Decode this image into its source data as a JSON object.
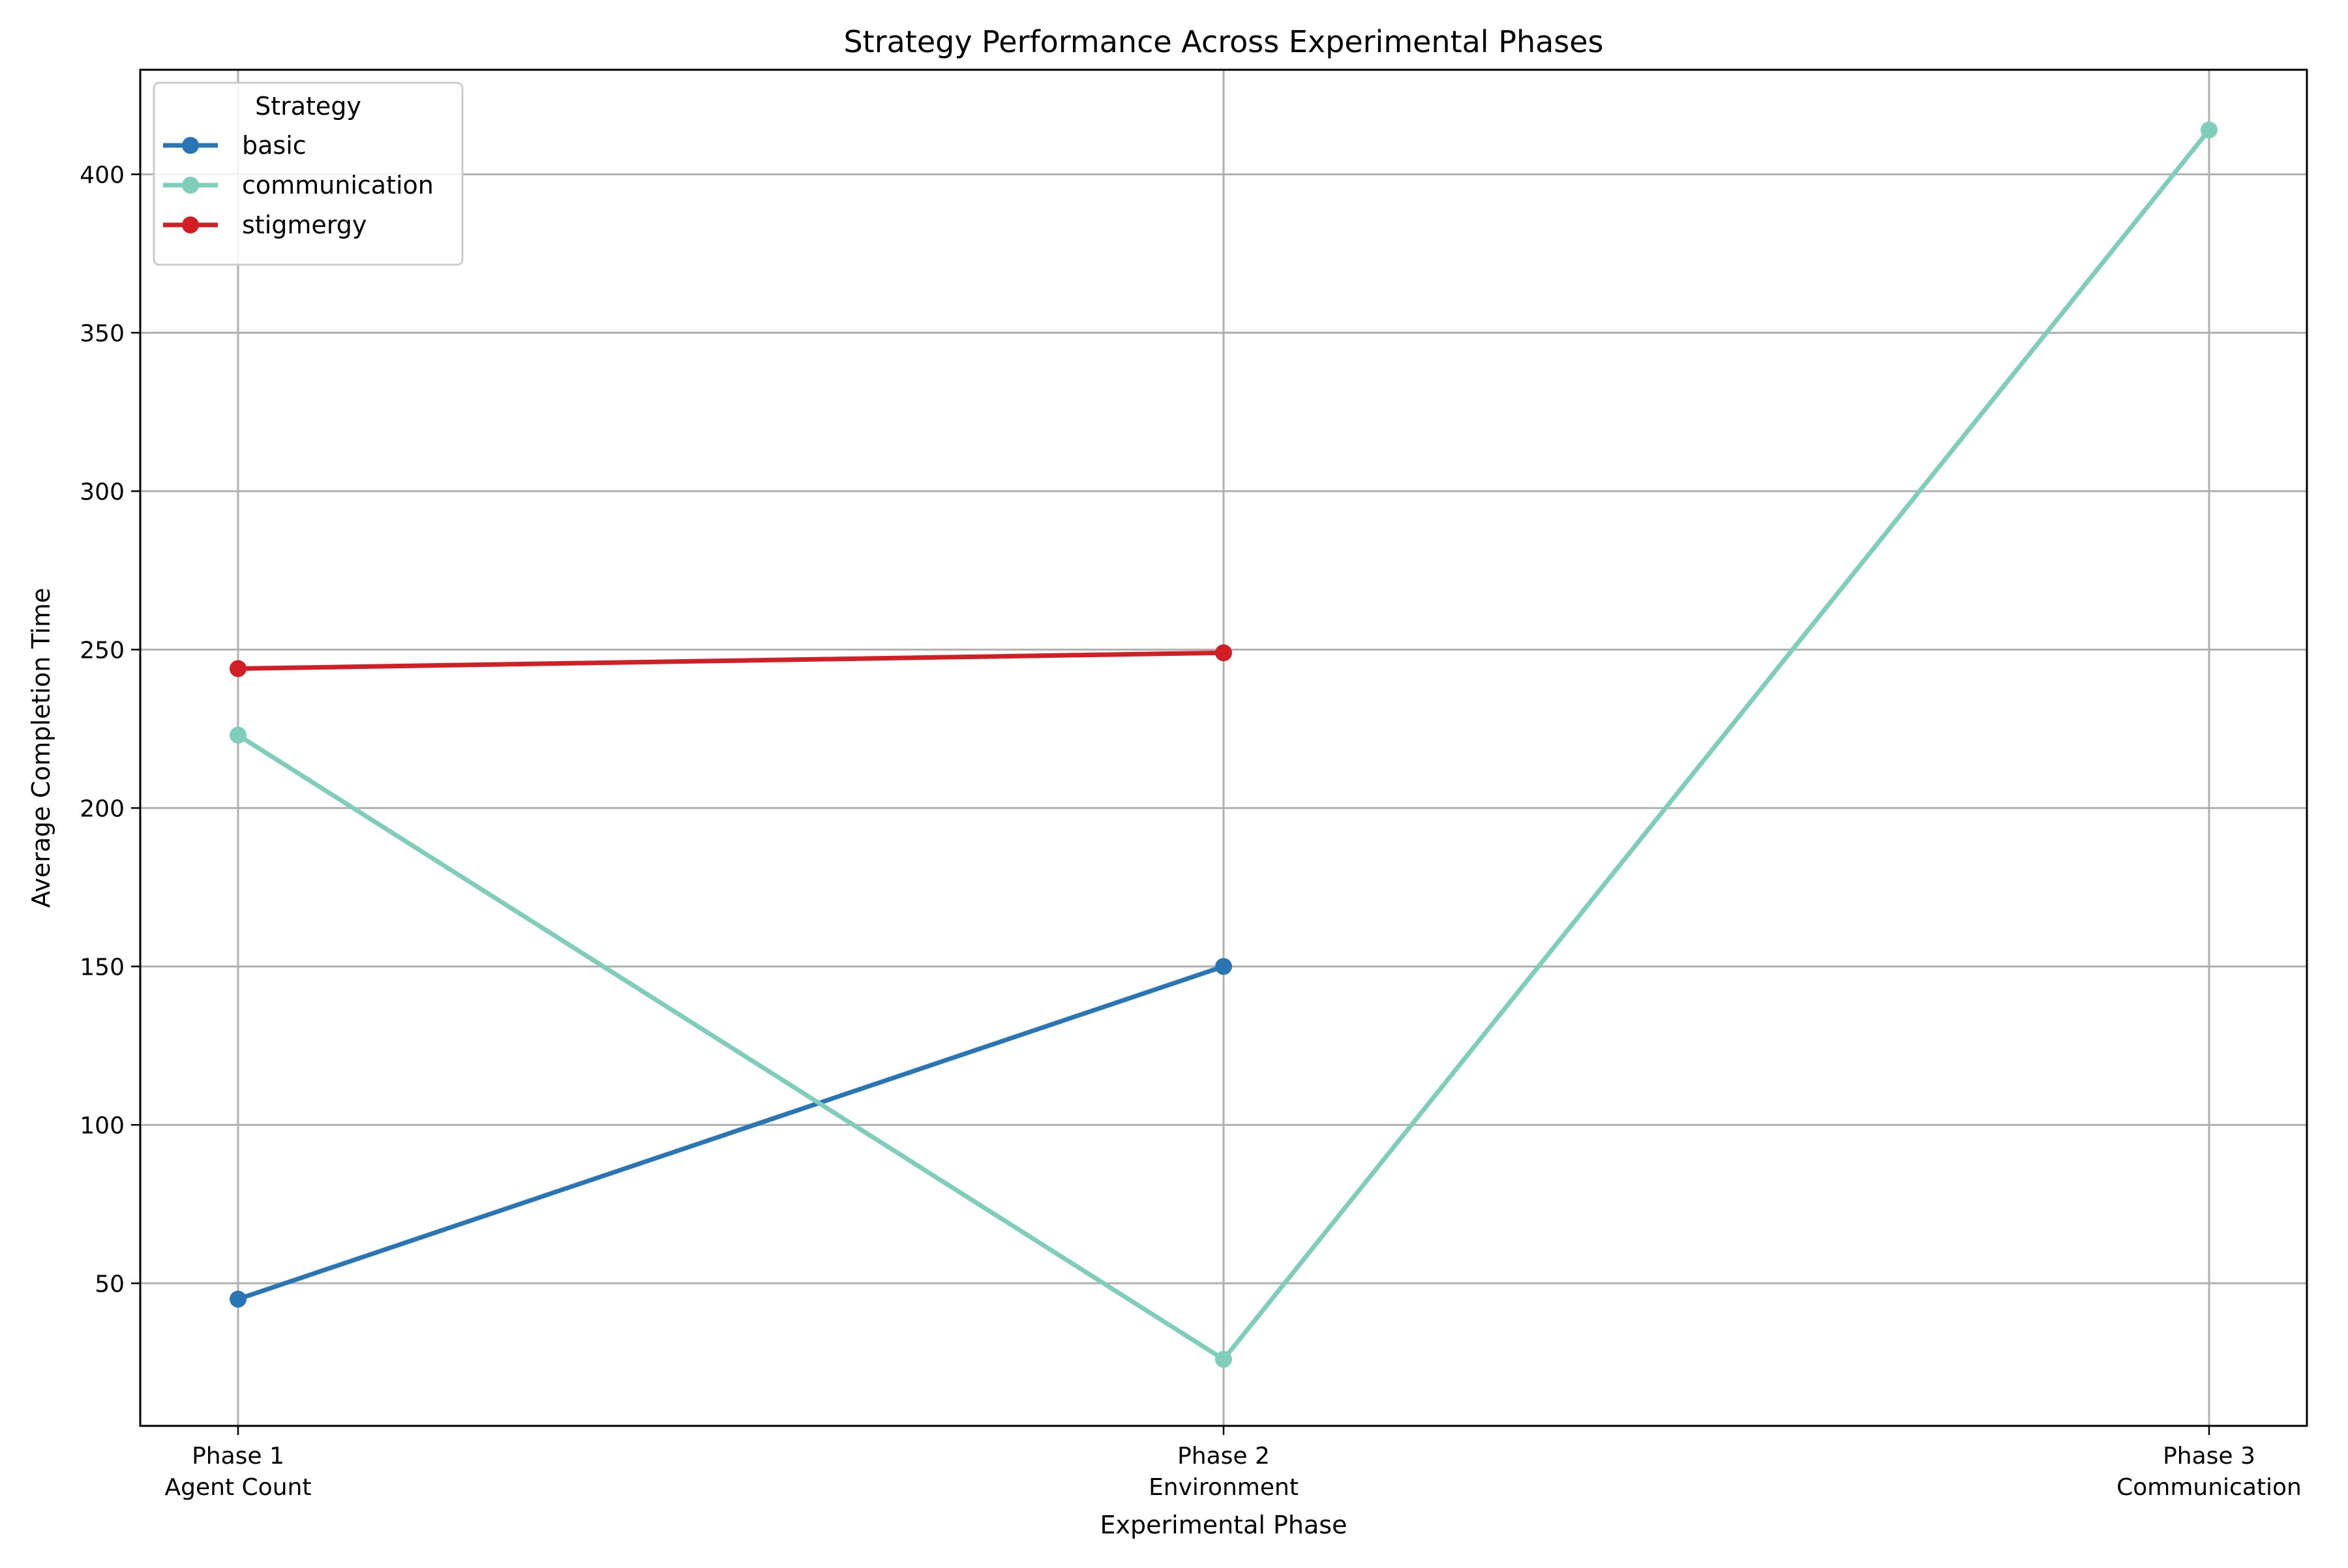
{
  "chart_data": {
    "type": "line",
    "title": "Strategy Performance Across Experimental Phases",
    "xlabel": "Experimental Phase",
    "ylabel": "Average Completion Time",
    "categories": [
      [
        "Phase 1",
        "Agent Count"
      ],
      [
        "Phase 2",
        "Environment"
      ],
      [
        "Phase 3",
        "Communication"
      ]
    ],
    "ylim": [
      5,
      433
    ],
    "yticks": [
      50,
      100,
      150,
      200,
      250,
      300,
      350,
      400
    ],
    "grid": true,
    "legend": {
      "title": "Strategy",
      "placement": "upper-left"
    },
    "series": [
      {
        "name": "basic",
        "color": "#2a76b4",
        "values": [
          45,
          150,
          null
        ]
      },
      {
        "name": "communication",
        "color": "#7fcdbb",
        "values": [
          223,
          26,
          414
        ]
      },
      {
        "name": "stigmergy",
        "color": "#d21f26",
        "values": [
          244,
          249,
          null
        ]
      }
    ]
  }
}
